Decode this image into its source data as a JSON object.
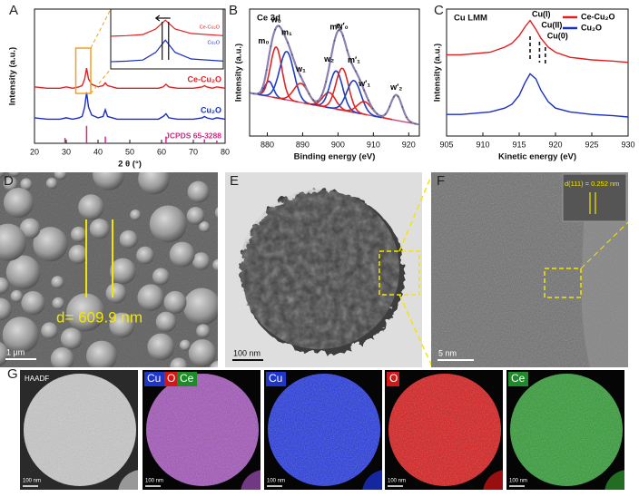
{
  "panel_labels": [
    "A",
    "B",
    "C",
    "D",
    "E",
    "F",
    "G"
  ],
  "chart_data": [
    {
      "type": "line",
      "xlabel": "2 θ (°)",
      "ylabel": "Intensity (a.u.)",
      "xlim": [
        20,
        80
      ],
      "xticks": [
        20,
        30,
        40,
        50,
        60,
        70,
        80
      ],
      "ylim": [
        0,
        1
      ],
      "x": [
        20,
        24,
        28,
        30,
        32,
        34,
        35,
        35.8,
        36.4,
        37,
        38,
        40,
        41.6,
        42.3,
        43,
        46,
        50,
        55,
        59,
        60.5,
        61.4,
        62.3,
        65,
        70,
        72.8,
        73.5,
        74.2,
        76,
        77.4,
        80
      ],
      "series": [
        {
          "name": "Ce-Cu₂O",
          "color": "#e02020",
          "values": [
            0.42,
            0.41,
            0.41,
            0.42,
            0.41,
            0.42,
            0.43,
            0.48,
            0.56,
            0.48,
            0.44,
            0.42,
            0.43,
            0.45,
            0.43,
            0.41,
            0.41,
            0.41,
            0.41,
            0.42,
            0.44,
            0.42,
            0.41,
            0.41,
            0.42,
            0.43,
            0.42,
            0.41,
            0.42,
            0.41
          ]
        },
        {
          "name": "Cu₂O",
          "color": "#1a2fc0",
          "values": [
            0.19,
            0.18,
            0.18,
            0.19,
            0.18,
            0.19,
            0.2,
            0.27,
            0.38,
            0.27,
            0.21,
            0.19,
            0.2,
            0.25,
            0.2,
            0.18,
            0.18,
            0.18,
            0.18,
            0.2,
            0.22,
            0.19,
            0.18,
            0.18,
            0.19,
            0.2,
            0.19,
            0.18,
            0.19,
            0.18
          ]
        }
      ],
      "reference": {
        "name": "JCPDS 65-3288",
        "color": "#e0208a",
        "x": [
          29.6,
          36.4,
          42.3,
          61.4,
          73.5,
          77.4
        ],
        "values": [
          0.04,
          0.13,
          0.05,
          0.05,
          0.03,
          0.02
        ]
      },
      "inset": {
        "xlim": [
          33,
          40
        ],
        "ylim": [
          0.12,
          0.66
        ],
        "peak_lines": [
          36.2,
          36.6
        ]
      }
    },
    {
      "type": "peak-fit",
      "title": "Ce 3d",
      "xlabel": "Binding energy (eV)",
      "ylabel": "Intensity (a.u.)",
      "xlim": [
        875,
        923
      ],
      "xticks": [
        880,
        890,
        900,
        910,
        920
      ],
      "ylim": [
        0,
        1
      ],
      "background": {
        "x": [
          875,
          923
        ],
        "values": [
          0.34,
          0.09
        ]
      },
      "envelope_color": "#8a80b4",
      "peaks": [
        {
          "label": "m₀",
          "center": 880.5,
          "height": 0.12,
          "sigma": 1.2,
          "color": "#1f3fbf"
        },
        {
          "label": "w₀",
          "center": 882.5,
          "height": 0.4,
          "sigma": 1.6,
          "color": "#e02525"
        },
        {
          "label": "m₁",
          "center": 885.5,
          "height": 0.38,
          "sigma": 2.0,
          "color": "#1f3fbf"
        },
        {
          "label": "w₁",
          "center": 889.5,
          "height": 0.15,
          "sigma": 2.0,
          "color": "#e02525"
        },
        {
          "label": "w₂",
          "center": 897.5,
          "height": 0.12,
          "sigma": 1.8,
          "color": "#e02525"
        },
        {
          "label": "m′₀",
          "center": 899.5,
          "height": 0.3,
          "sigma": 1.8,
          "color": "#1f3fbf"
        },
        {
          "label": "w′₀",
          "center": 901.2,
          "height": 0.33,
          "sigma": 1.8,
          "color": "#e02525"
        },
        {
          "label": "m′₁",
          "center": 904.5,
          "height": 0.25,
          "sigma": 2.0,
          "color": "#1f3fbf"
        },
        {
          "label": "w′₁",
          "center": 907.5,
          "height": 0.1,
          "sigma": 2.0,
          "color": "#e02525"
        },
        {
          "label": "w′₂",
          "center": 916.5,
          "height": 0.2,
          "sigma": 1.6,
          "color": "#1f3fbf"
        }
      ]
    },
    {
      "type": "line",
      "title": "Cu LMM",
      "xlabel": "Kinetic energy (eV)",
      "ylabel": "Intensity (a.u.)",
      "xlim": [
        905,
        930
      ],
      "xticks": [
        905,
        910,
        915,
        920,
        925,
        930
      ],
      "ylim": [
        0,
        1
      ],
      "legend": "upper right",
      "x": [
        905,
        907,
        909,
        911,
        913,
        914,
        915,
        915.8,
        916.5,
        917.3,
        918,
        919,
        920,
        922,
        925,
        928,
        930
      ],
      "series": [
        {
          "name": "Ce-Cu₂O",
          "color": "#e02020",
          "values": [
            0.64,
            0.64,
            0.65,
            0.66,
            0.7,
            0.73,
            0.79,
            0.86,
            0.91,
            0.84,
            0.77,
            0.7,
            0.66,
            0.62,
            0.6,
            0.59,
            0.58
          ]
        },
        {
          "name": "Cu₂O",
          "color": "#1a2fc0",
          "values": [
            0.17,
            0.17,
            0.18,
            0.19,
            0.22,
            0.25,
            0.32,
            0.42,
            0.49,
            0.45,
            0.36,
            0.27,
            0.22,
            0.19,
            0.17,
            0.16,
            0.15
          ]
        }
      ],
      "annotations": [
        {
          "text": "Cu(I)",
          "x": 916.5
        },
        {
          "text": "Cu(II)",
          "x": 917.8
        },
        {
          "text": "Cu(0)",
          "x": 918.6
        }
      ]
    }
  ],
  "images": {
    "D": {
      "annotation": "d= 609.9 nm",
      "scale_bar": "1 μm"
    },
    "E": {
      "scale_bar": "100 nm"
    },
    "F": {
      "annotation": "d(111) = 0.252 nm",
      "scale_bar": "5 nm"
    },
    "G": {
      "tiles": [
        {
          "labels": [
            {
              "text": "HAADF",
              "color": "none"
            }
          ],
          "color": "#c8c8c8",
          "scale_bar": "100 nm"
        },
        {
          "labels": [
            {
              "text": "Cu",
              "color": "#2036c8"
            },
            {
              "text": "O",
              "color": "#d01818"
            },
            {
              "text": "Ce",
              "color": "#1e8a2a"
            }
          ],
          "color": "#a050b8",
          "scale_bar": "100 nm"
        },
        {
          "labels": [
            {
              "text": "Cu",
              "color": "#2036c8"
            }
          ],
          "color": "#1e34e0",
          "scale_bar": "100 nm"
        },
        {
          "labels": [
            {
              "text": "O",
              "color": "#d01818"
            }
          ],
          "color": "#d81414",
          "scale_bar": "100 nm"
        },
        {
          "labels": [
            {
              "text": "Ce",
              "color": "#1e8a2a"
            }
          ],
          "color": "#2c9a30",
          "scale_bar": "100 nm"
        }
      ]
    }
  }
}
